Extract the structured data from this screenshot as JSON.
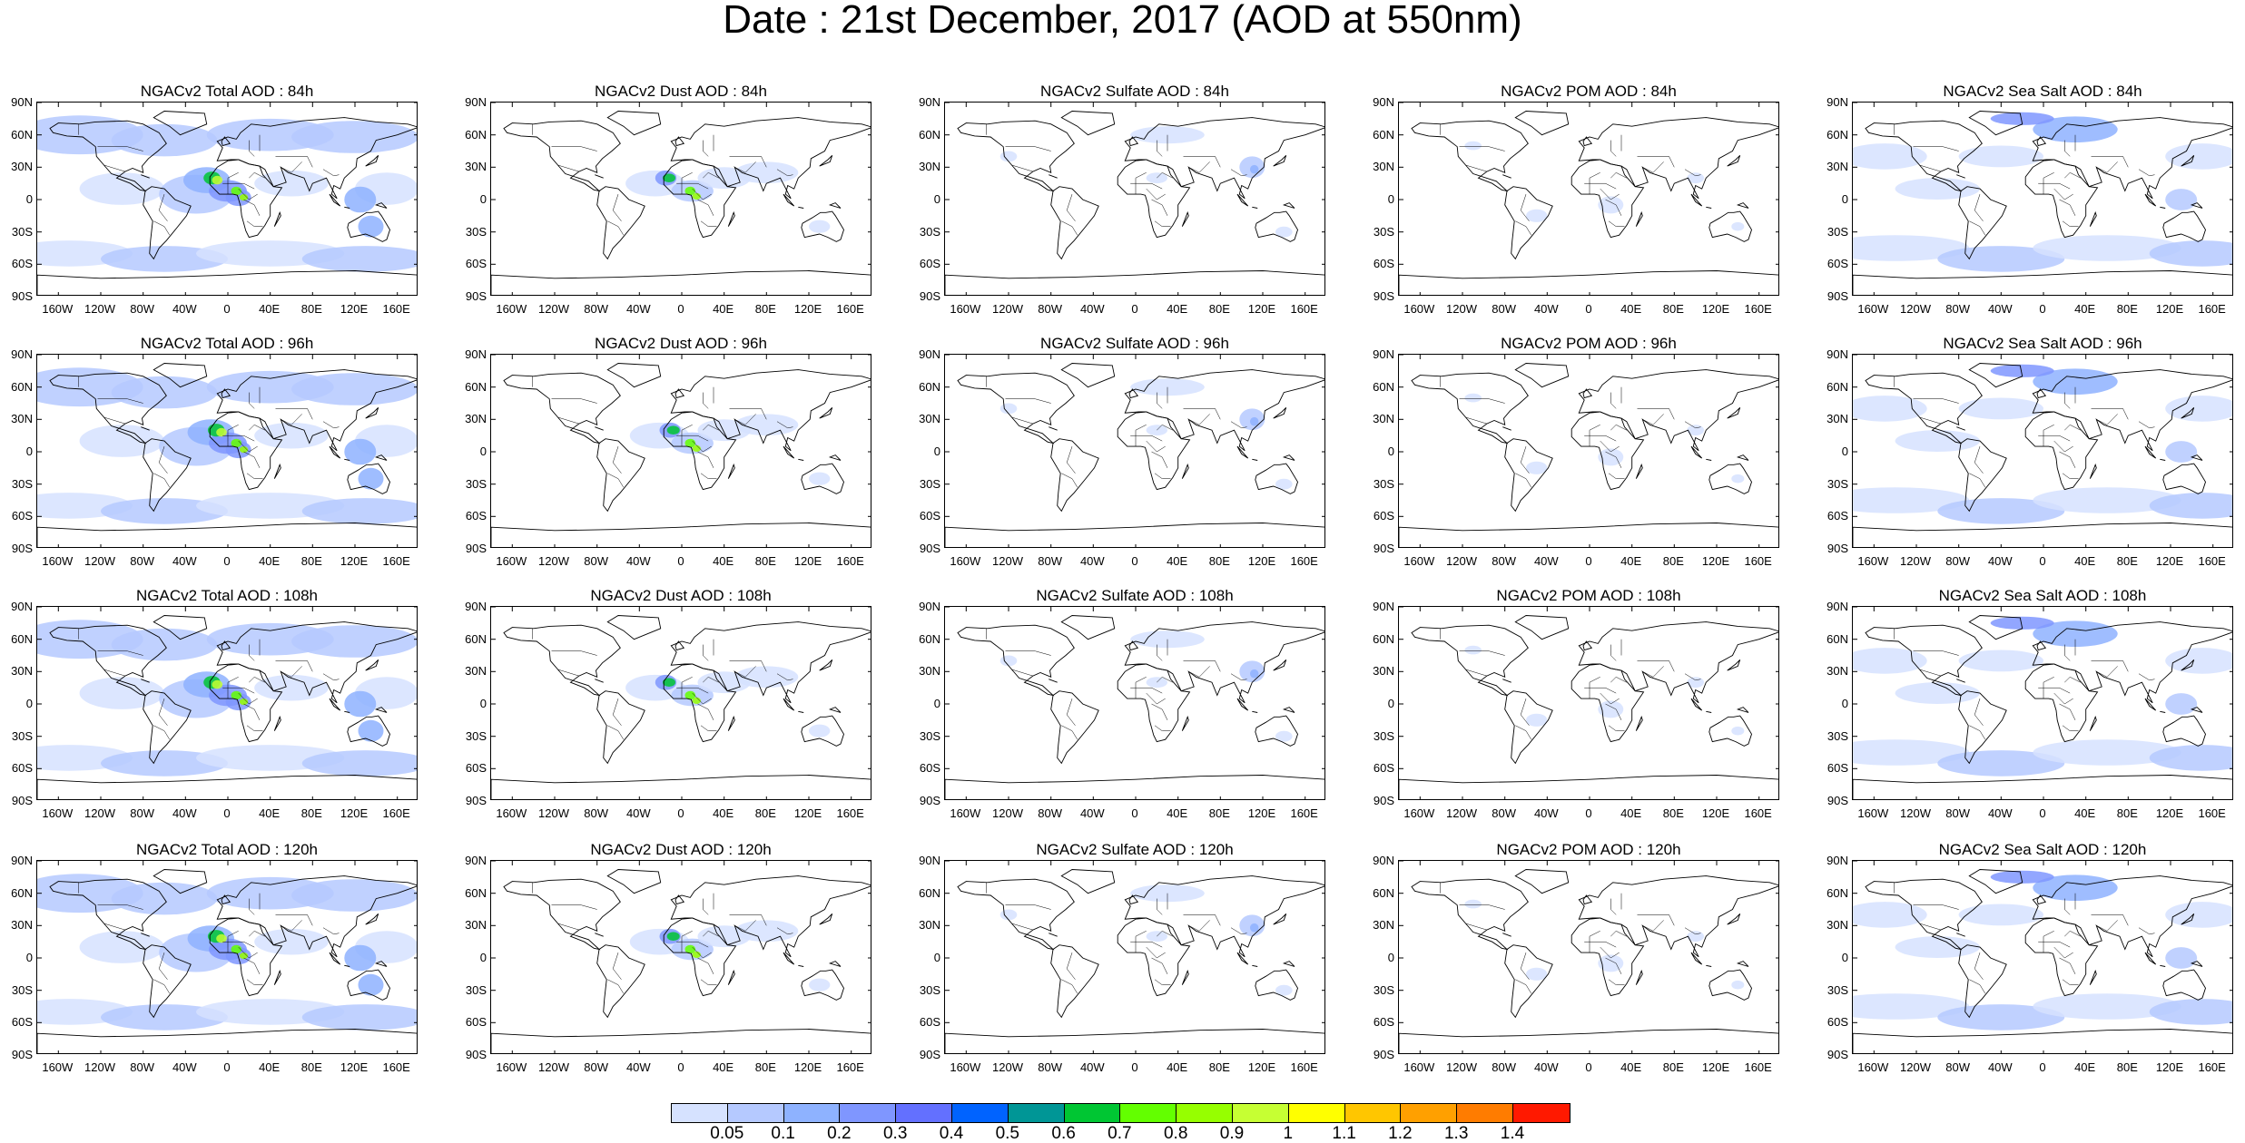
{
  "title": "Date : 21st December, 2017 (AOD at 550nm)",
  "lat_labels": [
    "90N",
    "60N",
    "30N",
    "0",
    "30S",
    "60S",
    "90S"
  ],
  "lon_labels": [
    "160W",
    "120W",
    "80W",
    "40W",
    "0",
    "40E",
    "80E",
    "120E",
    "160E"
  ],
  "rows": [
    {
      "panels": [
        {
          "title": "NGACv2 Total AOD : 84h",
          "type": "total"
        },
        {
          "title": "NGACv2 Dust AOD : 84h",
          "type": "dust"
        },
        {
          "title": "NGACv2 Sulfate AOD : 84h",
          "type": "sulfate"
        },
        {
          "title": "NGACv2 POM AOD : 84h",
          "type": "pom"
        },
        {
          "title": "NGACv2 Sea Salt AOD : 84h",
          "type": "seasalt"
        }
      ]
    },
    {
      "panels": [
        {
          "title": "NGACv2 Total AOD : 96h",
          "type": "total"
        },
        {
          "title": "NGACv2 Dust AOD : 96h",
          "type": "dust"
        },
        {
          "title": "NGACv2 Sulfate AOD : 96h",
          "type": "sulfate"
        },
        {
          "title": "NGACv2 POM AOD : 96h",
          "type": "pom"
        },
        {
          "title": "NGACv2 Sea Salt AOD : 96h",
          "type": "seasalt"
        }
      ]
    },
    {
      "panels": [
        {
          "title": "NGACv2 Total AOD : 108h",
          "type": "total"
        },
        {
          "title": "NGACv2 Dust AOD : 108h",
          "type": "dust"
        },
        {
          "title": "NGACv2 Sulfate AOD : 108h",
          "type": "sulfate"
        },
        {
          "title": "NGACv2 POM AOD : 108h",
          "type": "pom"
        },
        {
          "title": "NGACv2 Sea Salt AOD : 108h",
          "type": "seasalt"
        }
      ]
    },
    {
      "panels": [
        {
          "title": "NGACv2 Total AOD : 120h",
          "type": "total"
        },
        {
          "title": "NGACv2 Dust AOD : 120h",
          "type": "dust"
        },
        {
          "title": "NGACv2 Sulfate AOD : 120h",
          "type": "sulfate"
        },
        {
          "title": "NGACv2 POM AOD : 120h",
          "type": "pom"
        },
        {
          "title": "NGACv2 Sea Salt  AOD : 120h",
          "type": "seasalt"
        }
      ]
    }
  ],
  "colorbar": {
    "colors": [
      "#ffffff",
      "#d6e2ff",
      "#b5c9ff",
      "#8eb2ff",
      "#7f96ff",
      "#6370ff",
      "#0063ff",
      "#009696",
      "#00c633",
      "#63ff00",
      "#96ff00",
      "#c6ff33",
      "#ffff00",
      "#ffc600",
      "#ffa000",
      "#ff7c00",
      "#ff1900"
    ],
    "labels": [
      "0.05",
      "0.1",
      "0.2",
      "0.3",
      "0.4",
      "0.5",
      "0.6",
      "0.7",
      "0.8",
      "0.9",
      "1",
      "1.1",
      "1.2",
      "1.3",
      "1.4"
    ]
  }
}
